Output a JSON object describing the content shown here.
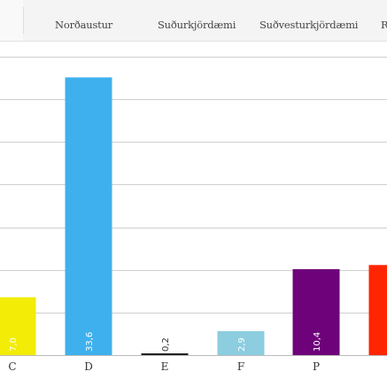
{
  "tabs": [
    {
      "label": "Norðaustur"
    },
    {
      "label": "Suðurkjördæmi"
    },
    {
      "label": "Suðvesturkjördæmi"
    },
    {
      "label": "R"
    }
  ],
  "chart_data": {
    "type": "bar",
    "categories": [
      "C",
      "D",
      "E",
      "F",
      "P",
      ""
    ],
    "values": [
      7.0,
      33.6,
      0.2,
      2.9,
      10.4,
      10.9
    ],
    "value_labels": [
      "7,0",
      "33,6",
      "0,2",
      "2,9",
      "10,4",
      ""
    ],
    "colors": [
      "#f2ec07",
      "#3fb0ee",
      "#222222",
      "#8ccde0",
      "#6e027a",
      "#ff2500"
    ],
    "ylim": [
      0,
      36
    ],
    "grid": true
  }
}
